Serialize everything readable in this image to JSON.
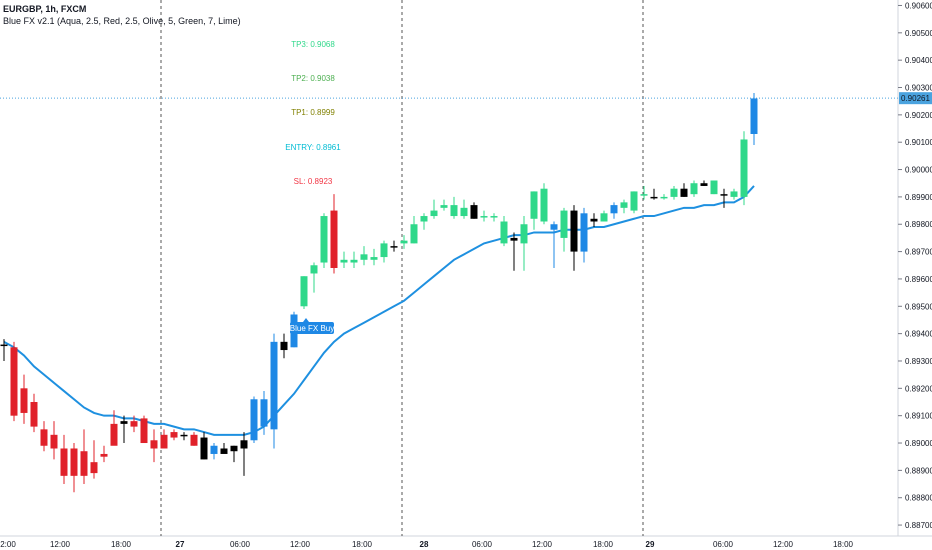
{
  "header": {
    "symbol": "EURGBP, 1h, FXCM",
    "indicator": "Blue FX v2.1 (Aqua, 2.5, Red, 2.5, Olive, 5, Green, 7, Lime)"
  },
  "colors": {
    "up": "#2fd88a",
    "down": "#e0212a",
    "blue_up": "#1e88e5",
    "black": "#000000",
    "ma": "#1e90e0",
    "cross": "#4aa3df",
    "buy_label": "#1e88e5"
  },
  "signal_label": "Blue FX Buy",
  "current_price": "0.90261",
  "levels": [
    {
      "label": "TP3: 0.9068",
      "color": "#2fd88a"
    },
    {
      "label": "TP2: 0.9038",
      "color": "#4caf50"
    },
    {
      "label": "TP1: 0.8999",
      "color": "#808000"
    },
    {
      "label": "ENTRY: 0.8961",
      "color": "#00bcd4"
    },
    {
      "label": "SL: 0.8923",
      "color": "#f23645"
    }
  ],
  "chart_data": {
    "type": "candlestick",
    "ylim": [
      0.8866,
      0.9062
    ],
    "y_ticks": [
      "0.90600",
      "0.90500",
      "0.90400",
      "0.90300",
      "0.90200",
      "0.90100",
      "0.90000",
      "0.89900",
      "0.89800",
      "0.89700",
      "0.89600",
      "0.89500",
      "0.89400",
      "0.89300",
      "0.89200",
      "0.89100",
      "0.89000",
      "0.88900",
      "0.88800",
      "0.88700"
    ],
    "x_ticks": [
      "2:00",
      "12:00",
      "18:00",
      "27",
      "06:00",
      "12:00",
      "18:00",
      "28",
      "06:00",
      "12:00",
      "18:00",
      "29",
      "06:00",
      "12:00",
      "18:00"
    ],
    "candles": [
      {
        "o": 0.8936,
        "h": 0.8938,
        "l": 0.893,
        "c": 0.8936,
        "col": "black"
      },
      {
        "o": 0.8935,
        "h": 0.8937,
        "l": 0.8908,
        "c": 0.891,
        "col": "red"
      },
      {
        "o": 0.892,
        "h": 0.8925,
        "l": 0.8907,
        "c": 0.8911,
        "col": "red"
      },
      {
        "o": 0.8915,
        "h": 0.8918,
        "l": 0.8904,
        "c": 0.8906,
        "col": "red"
      },
      {
        "o": 0.8905,
        "h": 0.8908,
        "l": 0.8897,
        "c": 0.8899,
        "col": "red"
      },
      {
        "o": 0.8903,
        "h": 0.8908,
        "l": 0.8894,
        "c": 0.8898,
        "col": "red"
      },
      {
        "o": 0.8898,
        "h": 0.8903,
        "l": 0.8885,
        "c": 0.8888,
        "col": "red"
      },
      {
        "o": 0.8898,
        "h": 0.89,
        "l": 0.8882,
        "c": 0.8888,
        "col": "red"
      },
      {
        "o": 0.8897,
        "h": 0.8905,
        "l": 0.8885,
        "c": 0.8888,
        "col": "red"
      },
      {
        "o": 0.8893,
        "h": 0.8901,
        "l": 0.8887,
        "c": 0.8889,
        "col": "red"
      },
      {
        "o": 0.8896,
        "h": 0.8899,
        "l": 0.8893,
        "c": 0.8895,
        "col": "red"
      },
      {
        "o": 0.8907,
        "h": 0.8912,
        "l": 0.89,
        "c": 0.8899,
        "col": "red"
      },
      {
        "o": 0.8907,
        "h": 0.891,
        "l": 0.89,
        "c": 0.8908,
        "col": "black"
      },
      {
        "o": 0.8908,
        "h": 0.891,
        "l": 0.8904,
        "c": 0.8906,
        "col": "red"
      },
      {
        "o": 0.8909,
        "h": 0.891,
        "l": 0.89,
        "c": 0.89,
        "col": "red"
      },
      {
        "o": 0.8901,
        "h": 0.8905,
        "l": 0.8893,
        "c": 0.8898,
        "col": "red"
      },
      {
        "o": 0.8903,
        "h": 0.8905,
        "l": 0.8898,
        "c": 0.8898,
        "col": "red"
      },
      {
        "o": 0.8904,
        "h": 0.8905,
        "l": 0.8901,
        "c": 0.8902,
        "col": "red"
      },
      {
        "o": 0.8903,
        "h": 0.8904,
        "l": 0.8901,
        "c": 0.8903,
        "col": "black"
      },
      {
        "o": 0.8903,
        "h": 0.8904,
        "l": 0.8899,
        "c": 0.8899,
        "col": "red"
      },
      {
        "o": 0.8902,
        "h": 0.8904,
        "l": 0.8894,
        "c": 0.8894,
        "col": "black"
      },
      {
        "o": 0.8896,
        "h": 0.89,
        "l": 0.8894,
        "c": 0.8899,
        "col": "blue"
      },
      {
        "o": 0.8898,
        "h": 0.89,
        "l": 0.8897,
        "c": 0.8896,
        "col": "black"
      },
      {
        "o": 0.8897,
        "h": 0.8899,
        "l": 0.8893,
        "c": 0.8899,
        "col": "black"
      },
      {
        "o": 0.8898,
        "h": 0.8904,
        "l": 0.8888,
        "c": 0.8901,
        "col": "black"
      },
      {
        "o": 0.8901,
        "h": 0.8917,
        "l": 0.89,
        "c": 0.8916,
        "col": "blue"
      },
      {
        "o": 0.8906,
        "h": 0.8919,
        "l": 0.8903,
        "c": 0.8916,
        "col": "blue"
      },
      {
        "o": 0.8905,
        "h": 0.894,
        "l": 0.8898,
        "c": 0.8937,
        "col": "blue"
      },
      {
        "o": 0.8937,
        "h": 0.894,
        "l": 0.8931,
        "c": 0.8934,
        "col": "black"
      },
      {
        "o": 0.8935,
        "h": 0.8948,
        "l": 0.8935,
        "c": 0.8947,
        "col": "blue"
      },
      {
        "o": 0.895,
        "h": 0.8961,
        "l": 0.8949,
        "c": 0.8961,
        "col": "green"
      },
      {
        "o": 0.8962,
        "h": 0.8966,
        "l": 0.8955,
        "c": 0.8965,
        "col": "green"
      },
      {
        "o": 0.8966,
        "h": 0.8984,
        "l": 0.8964,
        "c": 0.8983,
        "col": "green"
      },
      {
        "o": 0.8985,
        "h": 0.8991,
        "l": 0.8962,
        "c": 0.8964,
        "col": "red"
      },
      {
        "o": 0.8966,
        "h": 0.897,
        "l": 0.8964,
        "c": 0.8967,
        "col": "green"
      },
      {
        "o": 0.8966,
        "h": 0.897,
        "l": 0.8964,
        "c": 0.8967,
        "col": "green"
      },
      {
        "o": 0.8967,
        "h": 0.8972,
        "l": 0.8965,
        "c": 0.8969,
        "col": "green"
      },
      {
        "o": 0.8967,
        "h": 0.8971,
        "l": 0.8965,
        "c": 0.8968,
        "col": "green"
      },
      {
        "o": 0.8968,
        "h": 0.8974,
        "l": 0.8966,
        "c": 0.8973,
        "col": "green"
      },
      {
        "o": 0.8972,
        "h": 0.8974,
        "l": 0.897,
        "c": 0.8972,
        "col": "black"
      },
      {
        "o": 0.8973,
        "h": 0.8976,
        "l": 0.8971,
        "c": 0.8974,
        "col": "green"
      },
      {
        "o": 0.8973,
        "h": 0.8983,
        "l": 0.8973,
        "c": 0.898,
        "col": "green"
      },
      {
        "o": 0.8981,
        "h": 0.8984,
        "l": 0.8978,
        "c": 0.8983,
        "col": "green"
      },
      {
        "o": 0.8983,
        "h": 0.8989,
        "l": 0.8982,
        "c": 0.8985,
        "col": "green"
      },
      {
        "o": 0.8986,
        "h": 0.8989,
        "l": 0.8985,
        "c": 0.8987,
        "col": "green"
      },
      {
        "o": 0.8987,
        "h": 0.899,
        "l": 0.8982,
        "c": 0.8983,
        "col": "green"
      },
      {
        "o": 0.8983,
        "h": 0.8989,
        "l": 0.8982,
        "c": 0.8986,
        "col": "green"
      },
      {
        "o": 0.8987,
        "h": 0.8988,
        "l": 0.8982,
        "c": 0.8982,
        "col": "black"
      },
      {
        "o": 0.8983,
        "h": 0.8985,
        "l": 0.8981,
        "c": 0.8983,
        "col": "green"
      },
      {
        "o": 0.8983,
        "h": 0.8984,
        "l": 0.8981,
        "c": 0.8983,
        "col": "green"
      },
      {
        "o": 0.8981,
        "h": 0.8983,
        "l": 0.8972,
        "c": 0.8973,
        "col": "green"
      },
      {
        "o": 0.8975,
        "h": 0.8977,
        "l": 0.8963,
        "c": 0.8974,
        "col": "black"
      },
      {
        "o": 0.8973,
        "h": 0.8983,
        "l": 0.8963,
        "c": 0.898,
        "col": "green"
      },
      {
        "o": 0.8982,
        "h": 0.8992,
        "l": 0.8978,
        "c": 0.8992,
        "col": "green"
      },
      {
        "o": 0.8993,
        "h": 0.8995,
        "l": 0.898,
        "c": 0.8981,
        "col": "green"
      },
      {
        "o": 0.898,
        "h": 0.8981,
        "l": 0.8964,
        "c": 0.8978,
        "col": "blue"
      },
      {
        "o": 0.8975,
        "h": 0.8986,
        "l": 0.897,
        "c": 0.8985,
        "col": "green"
      },
      {
        "o": 0.8985,
        "h": 0.8987,
        "l": 0.8963,
        "c": 0.897,
        "col": "black"
      },
      {
        "o": 0.897,
        "h": 0.8986,
        "l": 0.8966,
        "c": 0.8984,
        "col": "blue"
      },
      {
        "o": 0.8982,
        "h": 0.8984,
        "l": 0.8979,
        "c": 0.8981,
        "col": "black"
      },
      {
        "o": 0.8981,
        "h": 0.8985,
        "l": 0.8981,
        "c": 0.8984,
        "col": "green"
      },
      {
        "o": 0.8984,
        "h": 0.8988,
        "l": 0.8982,
        "c": 0.8987,
        "col": "blue"
      },
      {
        "o": 0.8986,
        "h": 0.8989,
        "l": 0.8984,
        "c": 0.8988,
        "col": "green"
      },
      {
        "o": 0.8985,
        "h": 0.8992,
        "l": 0.8984,
        "c": 0.8992,
        "col": "green"
      },
      {
        "o": 0.8991,
        "h": 0.8994,
        "l": 0.8989,
        "c": 0.8991,
        "col": "green"
      },
      {
        "o": 0.899,
        "h": 0.8993,
        "l": 0.8989,
        "c": 0.899,
        "col": "black"
      },
      {
        "o": 0.899,
        "h": 0.8991,
        "l": 0.8989,
        "c": 0.899,
        "col": "green"
      },
      {
        "o": 0.899,
        "h": 0.8994,
        "l": 0.8989,
        "c": 0.8993,
        "col": "green"
      },
      {
        "o": 0.8993,
        "h": 0.8995,
        "l": 0.899,
        "c": 0.899,
        "col": "black"
      },
      {
        "o": 0.8991,
        "h": 0.8996,
        "l": 0.899,
        "c": 0.8995,
        "col": "green"
      },
      {
        "o": 0.8994,
        "h": 0.8996,
        "l": 0.8994,
        "c": 0.8995,
        "col": "black"
      },
      {
        "o": 0.8996,
        "h": 0.8996,
        "l": 0.8991,
        "c": 0.8991,
        "col": "green"
      },
      {
        "o": 0.8991,
        "h": 0.8993,
        "l": 0.8986,
        "c": 0.8991,
        "col": "black"
      },
      {
        "o": 0.8992,
        "h": 0.8993,
        "l": 0.8989,
        "c": 0.899,
        "col": "green"
      },
      {
        "o": 0.899,
        "h": 0.9014,
        "l": 0.8987,
        "c": 0.9011,
        "col": "green"
      },
      {
        "o": 0.9013,
        "h": 0.9028,
        "l": 0.9009,
        "c": 0.9026,
        "col": "blue"
      }
    ],
    "ma": [
      0.8937,
      0.8935,
      0.8932,
      0.8928,
      0.8925,
      0.8922,
      0.8919,
      0.8916,
      0.8913,
      0.8911,
      0.891,
      0.891,
      0.8909,
      0.8909,
      0.8908,
      0.8907,
      0.8907,
      0.8906,
      0.8905,
      0.8905,
      0.8904,
      0.8903,
      0.8903,
      0.8903,
      0.8903,
      0.8904,
      0.8906,
      0.891,
      0.8914,
      0.8918,
      0.8923,
      0.8928,
      0.8933,
      0.8937,
      0.894,
      0.8942,
      0.8944,
      0.8946,
      0.8948,
      0.895,
      0.8952,
      0.8955,
      0.8958,
      0.8961,
      0.8964,
      0.8967,
      0.8969,
      0.8971,
      0.8973,
      0.8974,
      0.8975,
      0.8976,
      0.8976,
      0.8977,
      0.8977,
      0.8977,
      0.8978,
      0.8978,
      0.8978,
      0.8979,
      0.8979,
      0.898,
      0.8981,
      0.8982,
      0.8983,
      0.8983,
      0.8984,
      0.8985,
      0.8986,
      0.8986,
      0.8987,
      0.8987,
      0.8988,
      0.8988,
      0.899,
      0.8994
    ]
  }
}
